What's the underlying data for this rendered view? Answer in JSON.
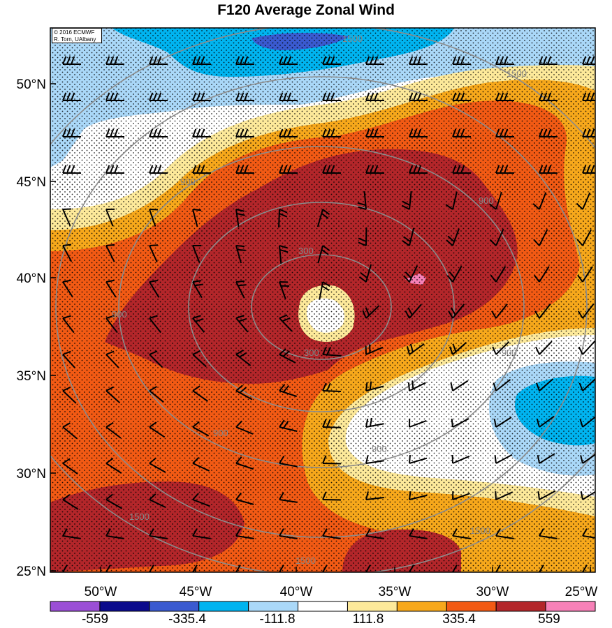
{
  "title": "F120 Average Zonal Wind",
  "credit": {
    "line1": "© 2016 ECMWF",
    "line2": "R. Torn, UAlbany"
  },
  "axes": {
    "lon_ticks": [
      "50°W",
      "45°W",
      "40°W",
      "35°W",
      "30°W",
      "25°W"
    ],
    "lat_ticks": [
      "50°N",
      "45°N",
      "40°N",
      "35°N",
      "30°N",
      "25°N"
    ],
    "lon_range": [
      -54,
      -25
    ],
    "lat_range": [
      25,
      52.5
    ]
  },
  "colorbar": {
    "colors": [
      "#9b4fd6",
      "#0a0a8c",
      "#3a5ad0",
      "#00b4f0",
      "#aad8f8",
      "#ffffff",
      "#fde99a",
      "#f7a81b",
      "#f25a14",
      "#b3262a",
      "#f781b8"
    ],
    "labels": [
      "-559",
      "-335.4",
      "-111.8",
      "111.8",
      "335.4",
      "559"
    ]
  },
  "contours": {
    "labels": [
      "1500",
      "1500",
      "900",
      "900",
      "900",
      "300",
      "300",
      "900",
      "900",
      "900",
      "1500",
      "1500",
      "1500"
    ]
  },
  "colors": {
    "dark_red": "#b3262a",
    "red_orange": "#f25a14",
    "orange": "#f7a81b",
    "yellow": "#fde99a",
    "light_blue": "#aad8f8",
    "blue": "#00b4f0",
    "medium_blue": "#3a5ad0",
    "pink": "#f781b8"
  }
}
